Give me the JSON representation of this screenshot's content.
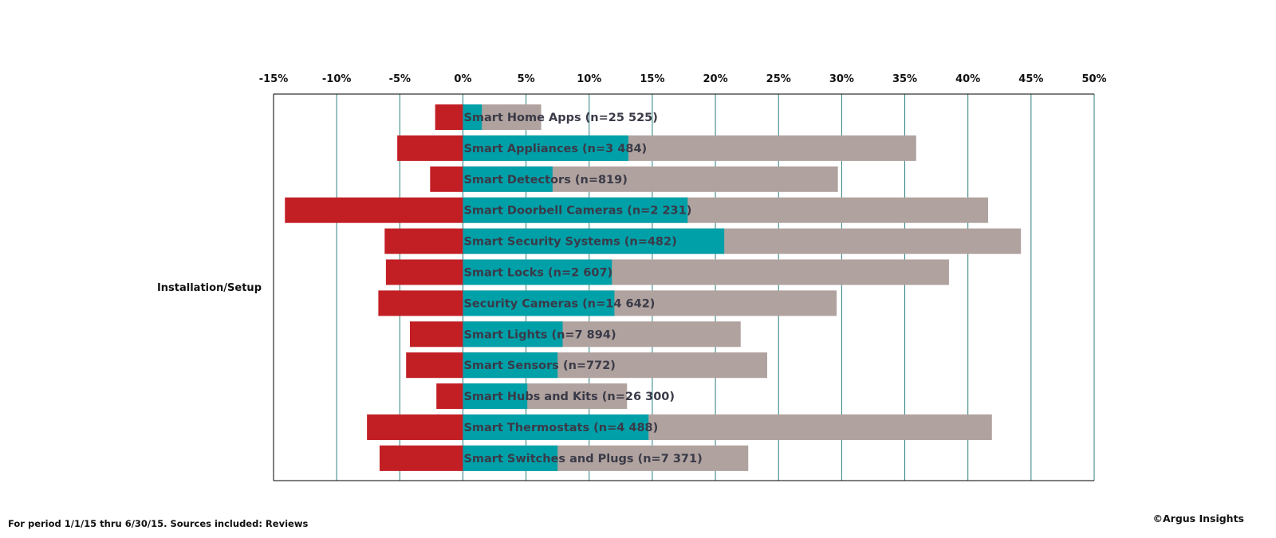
{
  "chart_data": {
    "type": "bar",
    "orientation": "horizontal",
    "group_label": "Installation/Setup",
    "categories": [
      "Smart Home Apps (n=25 525)",
      "Smart Appliances (n=3 484)",
      "Smart Detectors (n=819)",
      "Smart Doorbell Cameras (n=2 231)",
      "Smart Security Systems (n=482)",
      "Smart Locks (n=2 607)",
      "Security Cameras (n=14 642)",
      "Smart Lights (n=7 894)",
      "Smart Sensors (n=772)",
      "Smart Hubs and Kits (n=26 300)",
      "Smart Thermostats (n=4 488)",
      "Smart Switches and Plugs (n=7 371)"
    ],
    "series": [
      {
        "name": "negative",
        "color": "#c21f25",
        "values": [
          -2.2,
          -5.2,
          -2.6,
          -14.1,
          -6.2,
          -6.1,
          -6.7,
          -4.2,
          -4.5,
          -2.1,
          -7.6,
          -6.6
        ]
      },
      {
        "name": "positive-total",
        "color": "#b0a29e",
        "values": [
          6.2,
          35.9,
          29.7,
          41.6,
          44.2,
          38.5,
          29.6,
          22.0,
          24.1,
          13.0,
          41.9,
          22.6
        ]
      },
      {
        "name": "positive-strong",
        "color": "#00a0a8",
        "values": [
          1.5,
          13.1,
          7.1,
          17.8,
          20.7,
          11.8,
          12.0,
          7.9,
          7.5,
          5.1,
          14.7,
          7.5
        ]
      }
    ],
    "xlim": [
      -15,
      50
    ],
    "xticks": [
      -15,
      -10,
      -5,
      0,
      5,
      10,
      15,
      20,
      25,
      30,
      35,
      40,
      45,
      50
    ],
    "tick_suffix": "%",
    "grid": true,
    "xlabel": "",
    "ylabel": "",
    "title": ""
  },
  "footer": {
    "note": "For period 1/1/15 thru 6/30/15. Sources included: Reviews",
    "copyright": "©Argus Insights"
  }
}
